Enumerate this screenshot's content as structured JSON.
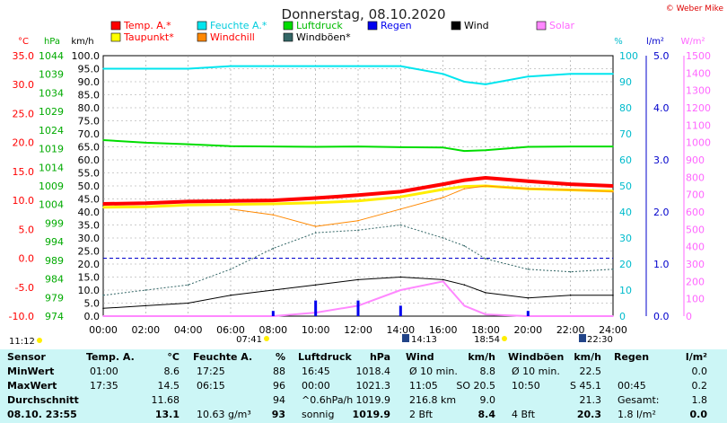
{
  "header": {
    "title": "Donnerstag, 08.10.2020",
    "credit": "© Weber Mike"
  },
  "legend": [
    {
      "name": "Temp. A.*",
      "color": "#ff0000"
    },
    {
      "name": "Feuchte A.*",
      "color": "#00e5ee"
    },
    {
      "name": "Luftdruck",
      "color": "#00dd00"
    },
    {
      "name": "Regen",
      "color": "#0000ee"
    },
    {
      "name": "Wind",
      "color": "#000000"
    },
    {
      "name": "Solar",
      "color": "#ff88ff"
    },
    {
      "name": "Taupunkt*",
      "color": "#ffff00"
    },
    {
      "name": "Windchill",
      "color": "#ff8800"
    },
    {
      "name": "Windböen*",
      "color": "#336666"
    }
  ],
  "axes": {
    "temp_unit": "°C",
    "press_unit": "hPa",
    "wind_unit": "km/h",
    "hum_unit": "%",
    "rain_unit": "l/m²",
    "solar_unit": "W/m²",
    "temp_ticks": [
      "35.0",
      "30.0",
      "25.0",
      "20.0",
      "15.0",
      "10.0",
      "5.0",
      "0.0",
      "-5.0",
      "-10.0"
    ],
    "press_ticks": [
      "1044",
      "1039",
      "1034",
      "1029",
      "1024",
      "1019",
      "1014",
      "1009",
      "1004",
      "999",
      "994",
      "989",
      "984",
      "979",
      "974"
    ],
    "wind_ticks": [
      "100.0",
      "95.0",
      "90.0",
      "85.0",
      "80.0",
      "75.0",
      "70.0",
      "65.0",
      "60.0",
      "55.0",
      "50.0",
      "45.0",
      "40.0",
      "35.0",
      "30.0",
      "25.0",
      "20.0",
      "15.0",
      "10.0",
      "5.0",
      "0.0"
    ],
    "hum_ticks": [
      "100",
      "90",
      "80",
      "70",
      "60",
      "50",
      "40",
      "30",
      "20",
      "10",
      "0"
    ],
    "rain_ticks": [
      "5.0",
      "4.0",
      "3.0",
      "2.0",
      "1.0",
      "0.0"
    ],
    "solar_ticks": [
      "1500",
      "1400",
      "1300",
      "1200",
      "1100",
      "1000",
      "900",
      "800",
      "700",
      "600",
      "500",
      "400",
      "300",
      "200",
      "100",
      "0"
    ],
    "time_ticks": [
      "00:00",
      "02:00",
      "04:00",
      "06:00",
      "08:00",
      "10:00",
      "12:00",
      "14:00",
      "16:00",
      "18:00",
      "20:00",
      "22:00",
      "24:00"
    ],
    "extra": {
      "left": "11:12",
      "sunrise": "07:41",
      "noon": "14:13",
      "sunset": "18:54",
      "right": "22:30"
    }
  },
  "chart_data": {
    "type": "line",
    "x": [
      "00:00",
      "02:00",
      "04:00",
      "06:00",
      "08:00",
      "10:00",
      "12:00",
      "14:00",
      "16:00",
      "17:00",
      "18:00",
      "20:00",
      "22:00",
      "24:00"
    ],
    "xlim": [
      "00:00",
      "24:00"
    ],
    "temp_ylim": [
      -10,
      35
    ],
    "press_ylim": [
      974,
      1044
    ],
    "wind_ylim": [
      0,
      100
    ],
    "hum_ylim": [
      0,
      100
    ],
    "rain_ylim": [
      0,
      5
    ],
    "solar_ylim": [
      0,
      1500
    ],
    "series": [
      {
        "name": "Temp. A.*",
        "axis": "temp",
        "values": [
          9.4,
          9.5,
          9.8,
          9.9,
          10.0,
          10.4,
          10.9,
          11.5,
          12.8,
          13.5,
          13.9,
          13.3,
          12.8,
          12.5
        ]
      },
      {
        "name": "Taupunkt*",
        "axis": "temp",
        "values": [
          8.8,
          8.9,
          9.2,
          9.3,
          9.4,
          9.6,
          9.9,
          10.6,
          11.9,
          12.4,
          12.5,
          12.0,
          11.8,
          11.6
        ]
      },
      {
        "name": "Windchill",
        "axis": "temp",
        "values": [
          null,
          null,
          null,
          8.5,
          7.5,
          5.5,
          6.5,
          8.5,
          10.5,
          12.0,
          12.5,
          12.0,
          11.8,
          11.5
        ]
      },
      {
        "name": "Feuchte A.*",
        "axis": "hum",
        "values": [
          95,
          95,
          95,
          96,
          96,
          96,
          96,
          96,
          93,
          90,
          89,
          92,
          93,
          93
        ]
      },
      {
        "name": "Luftdruck",
        "axis": "press",
        "values": [
          1021.3,
          1020.6,
          1020.2,
          1019.7,
          1019.6,
          1019.5,
          1019.6,
          1019.4,
          1019.3,
          1018.4,
          1018.6,
          1019.5,
          1019.6,
          1019.6
        ]
      },
      {
        "name": "Wind",
        "axis": "wind",
        "values": [
          3,
          4,
          5,
          8,
          10,
          12,
          14,
          15,
          14,
          12,
          9,
          7,
          8,
          8
        ]
      },
      {
        "name": "Windböen*",
        "axis": "wind",
        "values": [
          8,
          10,
          12,
          18,
          26,
          32,
          33,
          35,
          30,
          27,
          22,
          18,
          17,
          18
        ]
      },
      {
        "name": "Solar",
        "axis": "solar",
        "values": [
          0,
          0,
          0,
          0,
          0,
          20,
          60,
          150,
          200,
          60,
          10,
          0,
          0,
          0
        ]
      },
      {
        "name": "Regen",
        "axis": "rain",
        "values": [
          0,
          0,
          0,
          0,
          0.1,
          0.3,
          0.3,
          0.2,
          0,
          0,
          0,
          0.1,
          0,
          0
        ]
      }
    ],
    "ref_line": {
      "axis": "temp",
      "value": 0.0
    }
  },
  "stats": {
    "headers": [
      "Sensor",
      "Temp. A.",
      "°C",
      "Feuchte A.",
      "%",
      "Luftdruck",
      "hPa",
      "Wind",
      "km/h",
      "Windböen",
      "km/h",
      "Regen",
      "l/m²"
    ],
    "row_labels": [
      "MinWert",
      "MaxWert",
      "Durchschnitt",
      "08.10. 23:55"
    ],
    "temp": [
      [
        "01:00",
        "8.6"
      ],
      [
        "17:35",
        "14.5"
      ],
      [
        "",
        "11.68"
      ],
      [
        "",
        "13.1"
      ]
    ],
    "hum": [
      [
        "17:25",
        "88"
      ],
      [
        "06:15",
        "96"
      ],
      [
        "",
        "94"
      ],
      [
        "10.63 g/m³",
        "93"
      ]
    ],
    "press": [
      [
        "16:45",
        "1018.4"
      ],
      [
        "00:00",
        "1021.3"
      ],
      [
        "^0.6hPa/h",
        "1019.9"
      ],
      [
        "sonnig",
        "1019.9"
      ]
    ],
    "wind": [
      [
        "Ø 10 min.",
        "8.8"
      ],
      [
        "11:05",
        "SO 20.5"
      ],
      [
        "216.8 km",
        "9.0"
      ],
      [
        "2 Bft",
        "8.4"
      ]
    ],
    "gust": [
      [
        "Ø 10 min.",
        "22.5"
      ],
      [
        "10:50",
        "S 45.1"
      ],
      [
        "",
        "21.3"
      ],
      [
        "4 Bft",
        "20.3"
      ]
    ],
    "rain": [
      [
        "",
        "0.0"
      ],
      [
        "00:45",
        "0.2"
      ],
      [
        "Gesamt:",
        "1.8"
      ],
      [
        "1.8 l/m²",
        "0.0"
      ]
    ]
  }
}
